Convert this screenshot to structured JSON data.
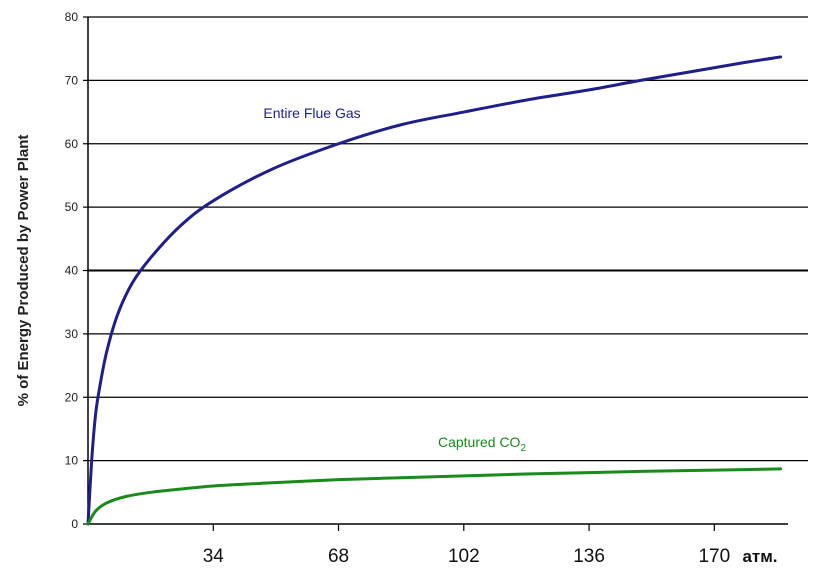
{
  "chart_data": {
    "type": "line",
    "ylabel": "% of Energy Produced by Power Plant",
    "xunit_label": "атм.",
    "ylim": [
      0,
      80
    ],
    "xlim": [
      0,
      190
    ],
    "y_ticks": [
      "0",
      "10",
      "20",
      "30",
      "40",
      "50",
      "60",
      "70",
      "80"
    ],
    "x_ticks": [
      {
        "value": 34,
        "label": "34"
      },
      {
        "value": 68,
        "label": "68"
      },
      {
        "value": 102,
        "label": "102"
      },
      {
        "value": 136,
        "label": "136"
      },
      {
        "value": 170,
        "label": "170"
      }
    ],
    "grid": "horizontal",
    "series": [
      {
        "name": "Entire Flue Gas",
        "color": "#1f1f8c",
        "x": [
          0,
          1,
          2,
          3,
          5,
          8,
          12,
          17,
          25,
          34,
          50,
          68,
          85,
          102,
          120,
          136,
          150,
          165,
          178,
          188
        ],
        "y": [
          0,
          10,
          17,
          21,
          27,
          33,
          38,
          42,
          47,
          51,
          56,
          60,
          63,
          65,
          67,
          68.5,
          70,
          71.5,
          72.8,
          73.7
        ]
      },
      {
        "name": "Captured CO",
        "name_subscript": "2",
        "color": "#1a8a1a",
        "x": [
          0,
          2,
          5,
          10,
          17,
          25,
          34,
          50,
          68,
          85,
          102,
          120,
          136,
          150,
          170,
          188
        ],
        "y": [
          0,
          2,
          3.3,
          4.3,
          5,
          5.5,
          6,
          6.5,
          7,
          7.3,
          7.6,
          7.9,
          8.1,
          8.3,
          8.5,
          8.7
        ]
      }
    ]
  }
}
